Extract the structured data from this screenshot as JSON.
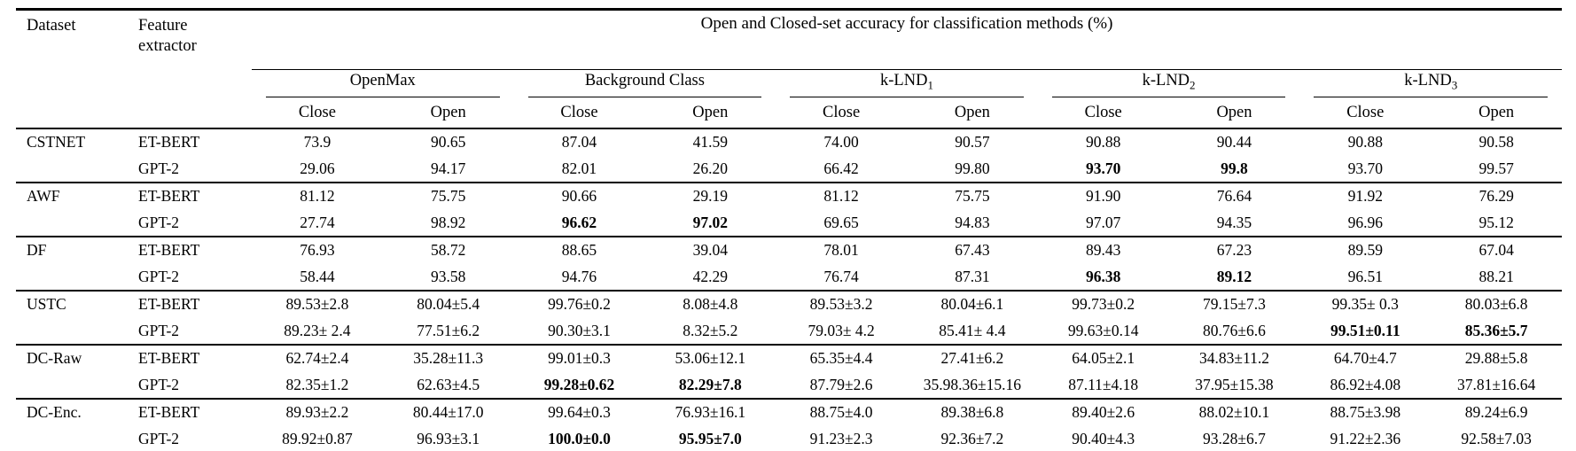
{
  "colors": {
    "text": "#000000",
    "background": "#ffffff",
    "rule": "#000000"
  },
  "table": {
    "col_dataset": "Dataset",
    "col_extractor": "Feature extractor",
    "title": "Open and Closed-set accuracy for classification methods (%)",
    "close_label": "Close",
    "open_label": "Open",
    "groups": [
      {
        "name": "OpenMax",
        "subscript": ""
      },
      {
        "name": "Background Class",
        "subscript": ""
      },
      {
        "name": "k-LND",
        "subscript": "1"
      },
      {
        "name": "k-LND",
        "subscript": "2"
      },
      {
        "name": "k-LND",
        "subscript": "3"
      }
    ],
    "rows": [
      {
        "dataset": "CSTNET",
        "extractor": "ET-BERT",
        "cells": [
          "73.9",
          "90.65",
          "87.04",
          "41.59",
          "74.00",
          "90.57",
          "90.88",
          "90.44",
          "90.88",
          "90.58"
        ],
        "bold": []
      },
      {
        "dataset": "",
        "extractor": "GPT-2",
        "cells": [
          "29.06",
          "94.17",
          "82.01",
          "26.20",
          "66.42",
          "99.80",
          "93.70",
          "99.8",
          "93.70",
          "99.57"
        ],
        "bold": [
          6,
          7
        ]
      },
      {
        "dataset": "AWF",
        "extractor": "ET-BERT",
        "cells": [
          "81.12",
          "75.75",
          "90.66",
          "29.19",
          "81.12",
          "75.75",
          "91.90",
          "76.64",
          "91.92",
          "76.29"
        ],
        "bold": []
      },
      {
        "dataset": "",
        "extractor": "GPT-2",
        "cells": [
          "27.74",
          "98.92",
          "96.62",
          "97.02",
          "69.65",
          "94.83",
          "97.07",
          "94.35",
          "96.96",
          "95.12"
        ],
        "bold": [
          2,
          3
        ]
      },
      {
        "dataset": "DF",
        "extractor": "ET-BERT",
        "cells": [
          "76.93",
          "58.72",
          "88.65",
          "39.04",
          "78.01",
          "67.43",
          "89.43",
          "67.23",
          "89.59",
          "67.04"
        ],
        "bold": []
      },
      {
        "dataset": "",
        "extractor": "GPT-2",
        "cells": [
          "58.44",
          "93.58",
          "94.76",
          "42.29",
          "76.74",
          "87.31",
          "96.38",
          "89.12",
          "96.51",
          "88.21"
        ],
        "bold": [
          6,
          7
        ]
      },
      {
        "dataset": "USTC",
        "extractor": "ET-BERT",
        "cells": [
          "89.53±2.8",
          "80.04±5.4",
          "99.76±0.2",
          "8.08±4.8",
          "89.53±3.2",
          "80.04±6.1",
          "99.73±0.2",
          "79.15±7.3",
          "99.35± 0.3",
          "80.03±6.8"
        ],
        "bold": []
      },
      {
        "dataset": "",
        "extractor": "GPT-2",
        "cells": [
          "89.23± 2.4",
          "77.51±6.2",
          "90.30±3.1",
          "8.32±5.2",
          "79.03± 4.2",
          "85.41± 4.4",
          "99.63±0.14",
          "80.76±6.6",
          "99.51±0.11",
          "85.36±5.7"
        ],
        "bold": [
          8,
          9
        ]
      },
      {
        "dataset": "DC-Raw",
        "extractor": "ET-BERT",
        "cells": [
          "62.74±2.4",
          "35.28±11.3",
          "99.01±0.3",
          "53.06±12.1",
          "65.35±4.4",
          "27.41±6.2",
          "64.05±2.1",
          "34.83±11.2",
          "64.70±4.7",
          "29.88±5.8"
        ],
        "bold": []
      },
      {
        "dataset": "",
        "extractor": "GPT-2",
        "cells": [
          "82.35±1.2",
          "62.63±4.5",
          "99.28±0.62",
          "82.29±7.8",
          "87.79±2.6",
          "35.98.36±15.16",
          "87.11±4.18",
          "37.95±15.38",
          "86.92±4.08",
          "37.81±16.64"
        ],
        "bold": [
          2,
          3
        ]
      },
      {
        "dataset": "DC-Enc.",
        "extractor": "ET-BERT",
        "cells": [
          "89.93±2.2",
          "80.44±17.0",
          "99.64±0.3",
          "76.93±16.1",
          "88.75±4.0",
          "89.38±6.8",
          "89.40±2.6",
          "88.02±10.1",
          "88.75±3.98",
          "89.24±6.9"
        ],
        "bold": []
      },
      {
        "dataset": "",
        "extractor": "GPT-2",
        "cells": [
          "89.92±0.87",
          "96.93±3.1",
          "100.0±0.0",
          "95.95±7.0",
          "91.23±2.3",
          "92.36±7.2",
          "90.40±4.3",
          "93.28±6.7",
          "91.22±2.36",
          "92.58±7.03"
        ],
        "bold": [
          2,
          3
        ]
      }
    ]
  }
}
